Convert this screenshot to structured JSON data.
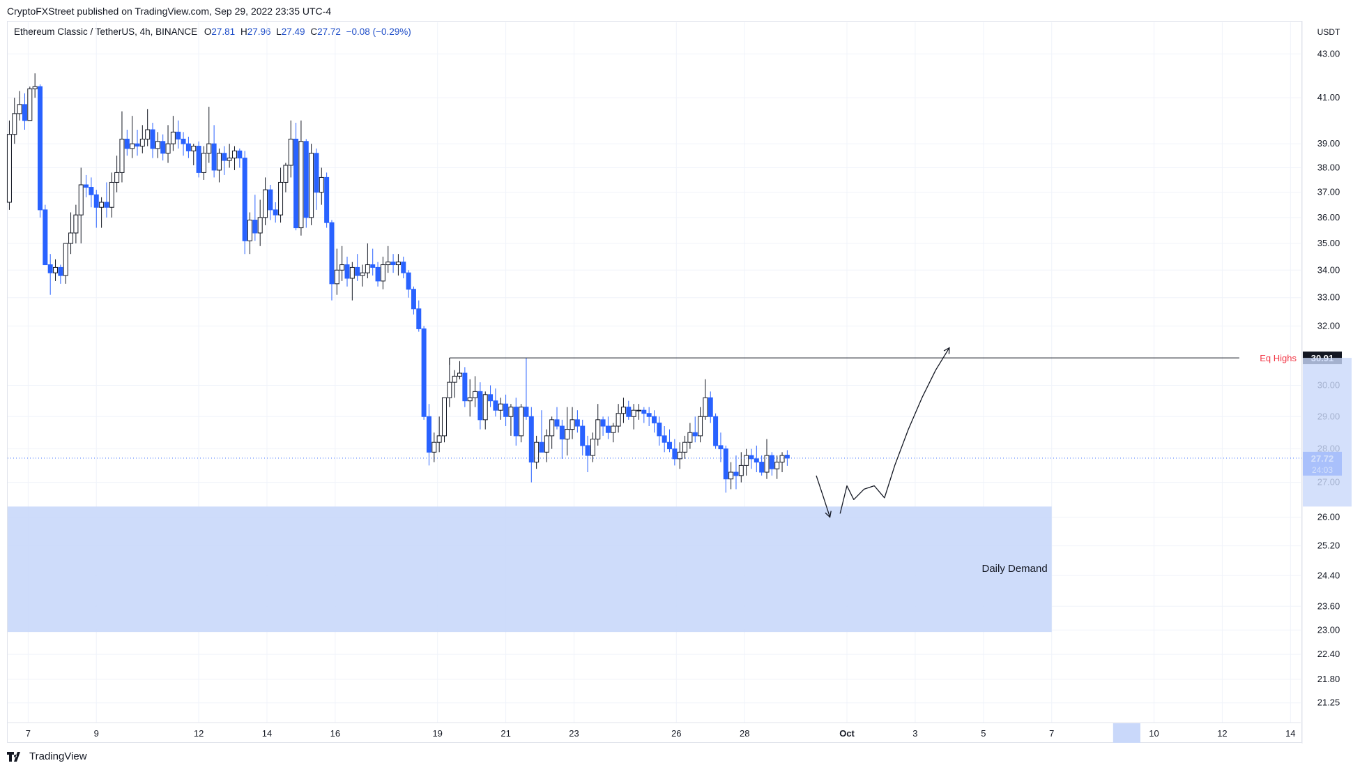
{
  "header": {
    "publisher": "CryptoFXStreet published on TradingView.com, Sep 29, 2022 23:35 UTC-4"
  },
  "legend": {
    "symbol": "Ethereum Classic / TetherUS, 4h, BINANCE",
    "o_label": "O",
    "o_value": "27.81",
    "h_label": "H",
    "h_value": "27.96",
    "l_label": "L",
    "l_value": "27.49",
    "c_label": "C",
    "c_value": "27.72",
    "change": "−0.08 (−0.29%)"
  },
  "footer": {
    "brand": "TradingView"
  },
  "colors": {
    "up": "#131722",
    "down": "#2962ff",
    "zone": "#c9d8fa",
    "eq_label": "#f23645",
    "price_badge": "#2962ff"
  },
  "chart_data": {
    "type": "candlestick",
    "currency": "USDT",
    "y_axis_ticks": [
      "43.00",
      "41.00",
      "39.00",
      "38.00",
      "37.00",
      "36.00",
      "35.00",
      "34.00",
      "33.00",
      "32.00",
      "30.00",
      "29.00",
      "28.00",
      "27.00",
      "26.00",
      "25.20",
      "24.40",
      "23.60",
      "23.00",
      "22.40",
      "21.80",
      "21.25"
    ],
    "y_axis_scale": "log",
    "ylim": [
      20.8,
      44.5
    ],
    "x_axis_ticks": [
      {
        "label": "7",
        "day": 7
      },
      {
        "label": "9",
        "day": 9
      },
      {
        "label": "12",
        "day": 12
      },
      {
        "label": "14",
        "day": 14
      },
      {
        "label": "16",
        "day": 16
      },
      {
        "label": "19",
        "day": 19
      },
      {
        "label": "21",
        "day": 21
      },
      {
        "label": "23",
        "day": 23
      },
      {
        "label": "26",
        "day": 26
      },
      {
        "label": "28",
        "day": 28
      },
      {
        "label": "Oct",
        "day": 31,
        "bold": true
      },
      {
        "label": "3",
        "day": 33
      },
      {
        "label": "5",
        "day": 35
      },
      {
        "label": "7",
        "day": 37
      },
      {
        "label": "10",
        "day": 40
      },
      {
        "label": "12",
        "day": 42
      },
      {
        "label": "14",
        "day": 44
      }
    ],
    "xlim_days": [
      6.4,
      44.3
    ],
    "last_price": {
      "value": "27.72",
      "countdown": "24:03",
      "price": 27.72
    },
    "annotations": {
      "eq_highs": {
        "label": "Eq Highs",
        "value": "30.91",
        "price": 30.91,
        "start_day": 19.35,
        "end_day": 42.5
      },
      "demand_zone": {
        "label": "Daily Demand",
        "top": 26.3,
        "bottom": 22.95,
        "start_day": 6.4,
        "end_day": 37.0
      },
      "forecast_path": [
        [
          30.1,
          27.2
        ],
        [
          30.3,
          26.6
        ],
        [
          30.5,
          26.0
        ],
        [
          30.8,
          26.1
        ],
        [
          31.0,
          26.9
        ],
        [
          31.2,
          26.5
        ],
        [
          31.5,
          26.8
        ],
        [
          31.8,
          26.9
        ],
        [
          32.1,
          26.55
        ],
        [
          32.4,
          27.5
        ],
        [
          32.8,
          28.6
        ],
        [
          33.2,
          29.6
        ],
        [
          33.6,
          30.5
        ],
        [
          34.0,
          31.25
        ]
      ],
      "highlight_x": {
        "label": "",
        "start_day": 38.8,
        "end_day": 39.6
      }
    },
    "candles": [
      [
        6.45,
        36.6,
        40.0,
        36.3,
        39.4
      ],
      [
        6.6,
        39.4,
        41.0,
        39.0,
        40.3
      ],
      [
        6.75,
        40.3,
        41.3,
        40.0,
        40.7
      ],
      [
        6.9,
        40.7,
        41.2,
        39.6,
        40.0
      ],
      [
        7.05,
        40.0,
        41.5,
        40.1,
        41.4
      ],
      [
        7.2,
        41.4,
        42.1,
        41.0,
        41.5
      ],
      [
        7.35,
        41.5,
        41.6,
        36.0,
        36.3
      ],
      [
        7.5,
        36.3,
        36.5,
        34.2,
        34.2
      ],
      [
        7.65,
        34.2,
        34.6,
        33.1,
        33.9
      ],
      [
        7.8,
        33.9,
        34.4,
        33.6,
        34.1
      ],
      [
        7.95,
        34.1,
        34.2,
        33.5,
        33.8
      ],
      [
        8.1,
        33.8,
        35.0,
        33.5,
        35.0
      ],
      [
        8.25,
        35.0,
        36.2,
        34.6,
        35.4
      ],
      [
        8.4,
        35.4,
        36.5,
        35.0,
        36.1
      ],
      [
        8.55,
        36.1,
        38.0,
        35.0,
        37.3
      ],
      [
        8.7,
        37.3,
        37.7,
        36.8,
        37.2
      ],
      [
        8.85,
        37.2,
        37.6,
        36.4,
        36.9
      ],
      [
        9.0,
        36.9,
        37.1,
        35.6,
        36.4
      ],
      [
        9.15,
        36.4,
        36.8,
        35.6,
        36.6
      ],
      [
        9.3,
        36.6,
        37.4,
        36.0,
        36.4
      ],
      [
        9.45,
        36.4,
        37.8,
        36.0,
        37.4
      ],
      [
        9.6,
        37.4,
        38.5,
        37.0,
        37.8
      ],
      [
        9.75,
        37.8,
        40.4,
        37.4,
        39.2
      ],
      [
        9.9,
        39.2,
        39.6,
        38.5,
        38.8
      ],
      [
        10.05,
        38.8,
        40.2,
        38.4,
        39.0
      ],
      [
        10.2,
        39.0,
        39.6,
        38.5,
        38.9
      ],
      [
        10.35,
        38.9,
        39.8,
        38.6,
        39.2
      ],
      [
        10.5,
        39.2,
        40.5,
        38.9,
        39.6
      ],
      [
        10.65,
        39.6,
        39.9,
        38.4,
        38.8
      ],
      [
        10.8,
        38.8,
        39.5,
        38.4,
        39.1
      ],
      [
        10.95,
        39.1,
        39.4,
        38.3,
        38.6
      ],
      [
        11.1,
        38.6,
        39.8,
        38.2,
        39.0
      ],
      [
        11.25,
        39.0,
        40.2,
        38.7,
        39.5
      ],
      [
        11.4,
        39.5,
        40.0,
        38.8,
        39.2
      ],
      [
        11.55,
        39.2,
        39.5,
        38.5,
        39.0
      ],
      [
        11.7,
        39.0,
        39.3,
        38.4,
        38.7
      ],
      [
        11.85,
        38.7,
        39.0,
        38.1,
        38.9
      ],
      [
        12.0,
        38.9,
        39.1,
        37.6,
        37.8
      ],
      [
        12.15,
        37.8,
        38.9,
        37.5,
        38.6
      ],
      [
        12.3,
        38.6,
        40.6,
        38.2,
        39.0
      ],
      [
        12.45,
        39.0,
        39.8,
        37.6,
        37.9
      ],
      [
        12.6,
        37.9,
        38.8,
        37.4,
        38.6
      ],
      [
        12.75,
        38.6,
        38.9,
        37.7,
        38.3
      ],
      [
        12.9,
        38.3,
        39.0,
        38.0,
        38.4
      ],
      [
        13.05,
        38.4,
        38.9,
        37.9,
        38.7
      ],
      [
        13.2,
        38.7,
        38.8,
        38.0,
        38.4
      ],
      [
        13.35,
        38.4,
        38.7,
        34.6,
        35.1
      ],
      [
        13.5,
        35.1,
        36.2,
        34.6,
        35.9
      ],
      [
        13.65,
        35.9,
        36.9,
        35.1,
        35.4
      ],
      [
        13.8,
        35.4,
        36.7,
        34.9,
        36.0
      ],
      [
        13.95,
        36.0,
        37.6,
        35.7,
        37.1
      ],
      [
        14.1,
        37.1,
        37.3,
        35.9,
        36.3
      ],
      [
        14.25,
        36.3,
        36.6,
        35.8,
        36.1
      ],
      [
        14.4,
        36.1,
        38.0,
        35.8,
        37.4
      ],
      [
        14.55,
        37.4,
        38.2,
        37.0,
        38.1
      ],
      [
        14.7,
        38.1,
        40.0,
        37.6,
        39.2
      ],
      [
        14.85,
        39.2,
        39.9,
        35.5,
        35.6
      ],
      [
        15.0,
        35.6,
        40.0,
        35.3,
        39.1
      ],
      [
        15.15,
        39.1,
        39.2,
        35.6,
        36.0
      ],
      [
        15.3,
        36.0,
        39.0,
        35.7,
        38.6
      ],
      [
        15.45,
        38.6,
        38.8,
        36.3,
        37.0
      ],
      [
        15.6,
        37.0,
        38.0,
        36.5,
        37.6
      ],
      [
        15.75,
        37.6,
        37.8,
        35.6,
        35.8
      ],
      [
        15.9,
        35.8,
        35.9,
        32.9,
        33.5
      ],
      [
        16.05,
        33.5,
        34.8,
        33.1,
        34.0
      ],
      [
        16.2,
        34.0,
        34.9,
        33.6,
        34.2
      ],
      [
        16.35,
        34.2,
        34.5,
        33.4,
        33.7
      ],
      [
        16.5,
        33.7,
        34.3,
        32.9,
        34.1
      ],
      [
        16.65,
        34.1,
        34.6,
        33.6,
        33.8
      ],
      [
        16.8,
        33.8,
        34.2,
        33.4,
        33.9
      ],
      [
        16.95,
        33.9,
        35.0,
        33.7,
        34.2
      ],
      [
        17.1,
        34.2,
        34.8,
        33.8,
        34.1
      ],
      [
        17.25,
        34.1,
        34.3,
        33.4,
        33.6
      ],
      [
        17.4,
        33.6,
        34.5,
        33.3,
        34.2
      ],
      [
        17.55,
        34.2,
        34.9,
        33.9,
        34.3
      ],
      [
        17.7,
        34.3,
        34.6,
        33.9,
        34.2
      ],
      [
        17.85,
        34.2,
        34.6,
        33.8,
        34.3
      ],
      [
        18.0,
        34.3,
        34.5,
        33.7,
        33.9
      ],
      [
        18.15,
        33.9,
        34.0,
        33.0,
        33.3
      ],
      [
        18.3,
        33.3,
        33.4,
        32.4,
        32.6
      ],
      [
        18.45,
        32.6,
        32.9,
        31.8,
        31.9
      ],
      [
        18.6,
        31.9,
        32.0,
        28.9,
        29.0
      ],
      [
        18.75,
        29.0,
        29.4,
        27.5,
        27.9
      ],
      [
        18.9,
        27.9,
        28.5,
        27.6,
        28.2
      ],
      [
        19.05,
        28.2,
        29.0,
        27.9,
        28.4
      ],
      [
        19.2,
        28.4,
        29.6,
        28.2,
        29.6
      ],
      [
        19.35,
        29.6,
        30.91,
        29.3,
        30.1
      ],
      [
        19.5,
        30.1,
        30.5,
        29.6,
        30.3
      ],
      [
        19.65,
        30.3,
        30.8,
        30.2,
        30.4
      ],
      [
        19.8,
        30.4,
        30.6,
        29.3,
        29.5
      ],
      [
        19.95,
        29.5,
        30.2,
        29.0,
        29.6
      ],
      [
        20.1,
        29.6,
        30.3,
        29.3,
        29.8
      ],
      [
        20.25,
        29.8,
        30.1,
        28.6,
        28.9
      ],
      [
        20.4,
        28.9,
        29.8,
        28.6,
        29.7
      ],
      [
        20.55,
        29.7,
        30.0,
        29.3,
        29.5
      ],
      [
        20.7,
        29.5,
        29.9,
        29.0,
        29.2
      ],
      [
        20.85,
        29.2,
        29.6,
        28.9,
        29.4
      ],
      [
        21.0,
        29.4,
        29.7,
        28.7,
        29.0
      ],
      [
        21.15,
        29.0,
        29.4,
        28.4,
        29.3
      ],
      [
        21.3,
        29.3,
        29.6,
        28.1,
        28.4
      ],
      [
        21.45,
        28.4,
        29.4,
        28.2,
        29.3
      ],
      [
        21.6,
        29.3,
        30.91,
        28.9,
        29.0
      ],
      [
        21.75,
        29.0,
        29.3,
        27.0,
        27.6
      ],
      [
        21.9,
        27.6,
        28.4,
        27.4,
        28.2
      ],
      [
        22.05,
        28.2,
        29.2,
        27.9,
        27.9
      ],
      [
        22.2,
        27.9,
        28.6,
        27.6,
        28.4
      ],
      [
        22.35,
        28.4,
        29.0,
        28.0,
        28.9
      ],
      [
        22.5,
        28.9,
        29.3,
        28.6,
        28.7
      ],
      [
        22.65,
        28.7,
        28.9,
        27.7,
        28.3
      ],
      [
        22.8,
        28.3,
        29.3,
        27.8,
        28.6
      ],
      [
        22.95,
        28.6,
        29.3,
        28.3,
        28.9
      ],
      [
        23.1,
        28.9,
        29.2,
        28.5,
        28.7
      ],
      [
        23.25,
        28.7,
        28.9,
        27.8,
        28.1
      ],
      [
        23.4,
        28.1,
        28.4,
        27.3,
        27.8
      ],
      [
        23.55,
        27.8,
        28.5,
        27.6,
        28.3
      ],
      [
        23.7,
        28.3,
        29.4,
        28.1,
        28.9
      ],
      [
        23.85,
        28.9,
        29.0,
        28.4,
        28.7
      ],
      [
        24.0,
        28.7,
        29.0,
        28.3,
        28.5
      ],
      [
        24.15,
        28.5,
        28.8,
        28.2,
        28.7
      ],
      [
        24.3,
        28.7,
        29.4,
        28.5,
        29.1
      ],
      [
        24.45,
        29.1,
        29.6,
        28.8,
        29.3
      ],
      [
        24.6,
        29.3,
        29.5,
        28.9,
        29.0
      ],
      [
        24.75,
        29.0,
        29.4,
        28.6,
        29.2
      ],
      [
        24.9,
        29.2,
        29.4,
        28.9,
        29.2
      ],
      [
        25.05,
        29.2,
        29.3,
        28.8,
        29.1
      ],
      [
        25.2,
        29.1,
        29.3,
        28.7,
        29.0
      ],
      [
        25.35,
        29.0,
        29.2,
        28.5,
        28.8
      ],
      [
        25.5,
        28.8,
        29.0,
        28.1,
        28.4
      ],
      [
        25.65,
        28.4,
        28.7,
        27.9,
        28.2
      ],
      [
        25.8,
        28.2,
        28.6,
        27.9,
        28.0
      ],
      [
        25.95,
        28.0,
        28.3,
        27.5,
        27.7
      ],
      [
        26.1,
        27.7,
        28.2,
        27.4,
        27.9
      ],
      [
        26.25,
        27.9,
        28.4,
        27.7,
        28.2
      ],
      [
        26.4,
        28.2,
        28.8,
        28.0,
        28.5
      ],
      [
        26.55,
        28.5,
        29.0,
        28.2,
        28.4
      ],
      [
        26.7,
        28.4,
        29.3,
        28.2,
        29.0
      ],
      [
        26.85,
        29.0,
        30.2,
        28.9,
        29.6
      ],
      [
        27.0,
        29.6,
        29.8,
        28.8,
        29.0
      ],
      [
        27.15,
        29.0,
        29.1,
        28.0,
        28.1
      ],
      [
        27.3,
        28.1,
        28.5,
        27.6,
        28.0
      ],
      [
        27.45,
        28.0,
        28.1,
        26.7,
        27.1
      ],
      [
        27.6,
        27.1,
        27.6,
        26.8,
        27.3
      ],
      [
        27.75,
        27.3,
        27.8,
        26.8,
        27.2
      ],
      [
        27.9,
        27.2,
        27.9,
        27.0,
        27.5
      ],
      [
        28.05,
        27.5,
        28.0,
        27.2,
        27.8
      ],
      [
        28.2,
        27.8,
        28.0,
        27.4,
        27.7
      ],
      [
        28.35,
        27.7,
        28.1,
        27.3,
        27.6
      ],
      [
        28.5,
        27.6,
        27.8,
        27.2,
        27.3
      ],
      [
        28.65,
        27.3,
        28.3,
        27.1,
        27.8
      ],
      [
        28.8,
        27.8,
        27.9,
        27.2,
        27.4
      ],
      [
        28.95,
        27.4,
        27.8,
        27.1,
        27.6
      ],
      [
        29.1,
        27.6,
        27.9,
        27.3,
        27.8
      ],
      [
        29.25,
        27.81,
        27.96,
        27.49,
        27.72
      ]
    ]
  }
}
